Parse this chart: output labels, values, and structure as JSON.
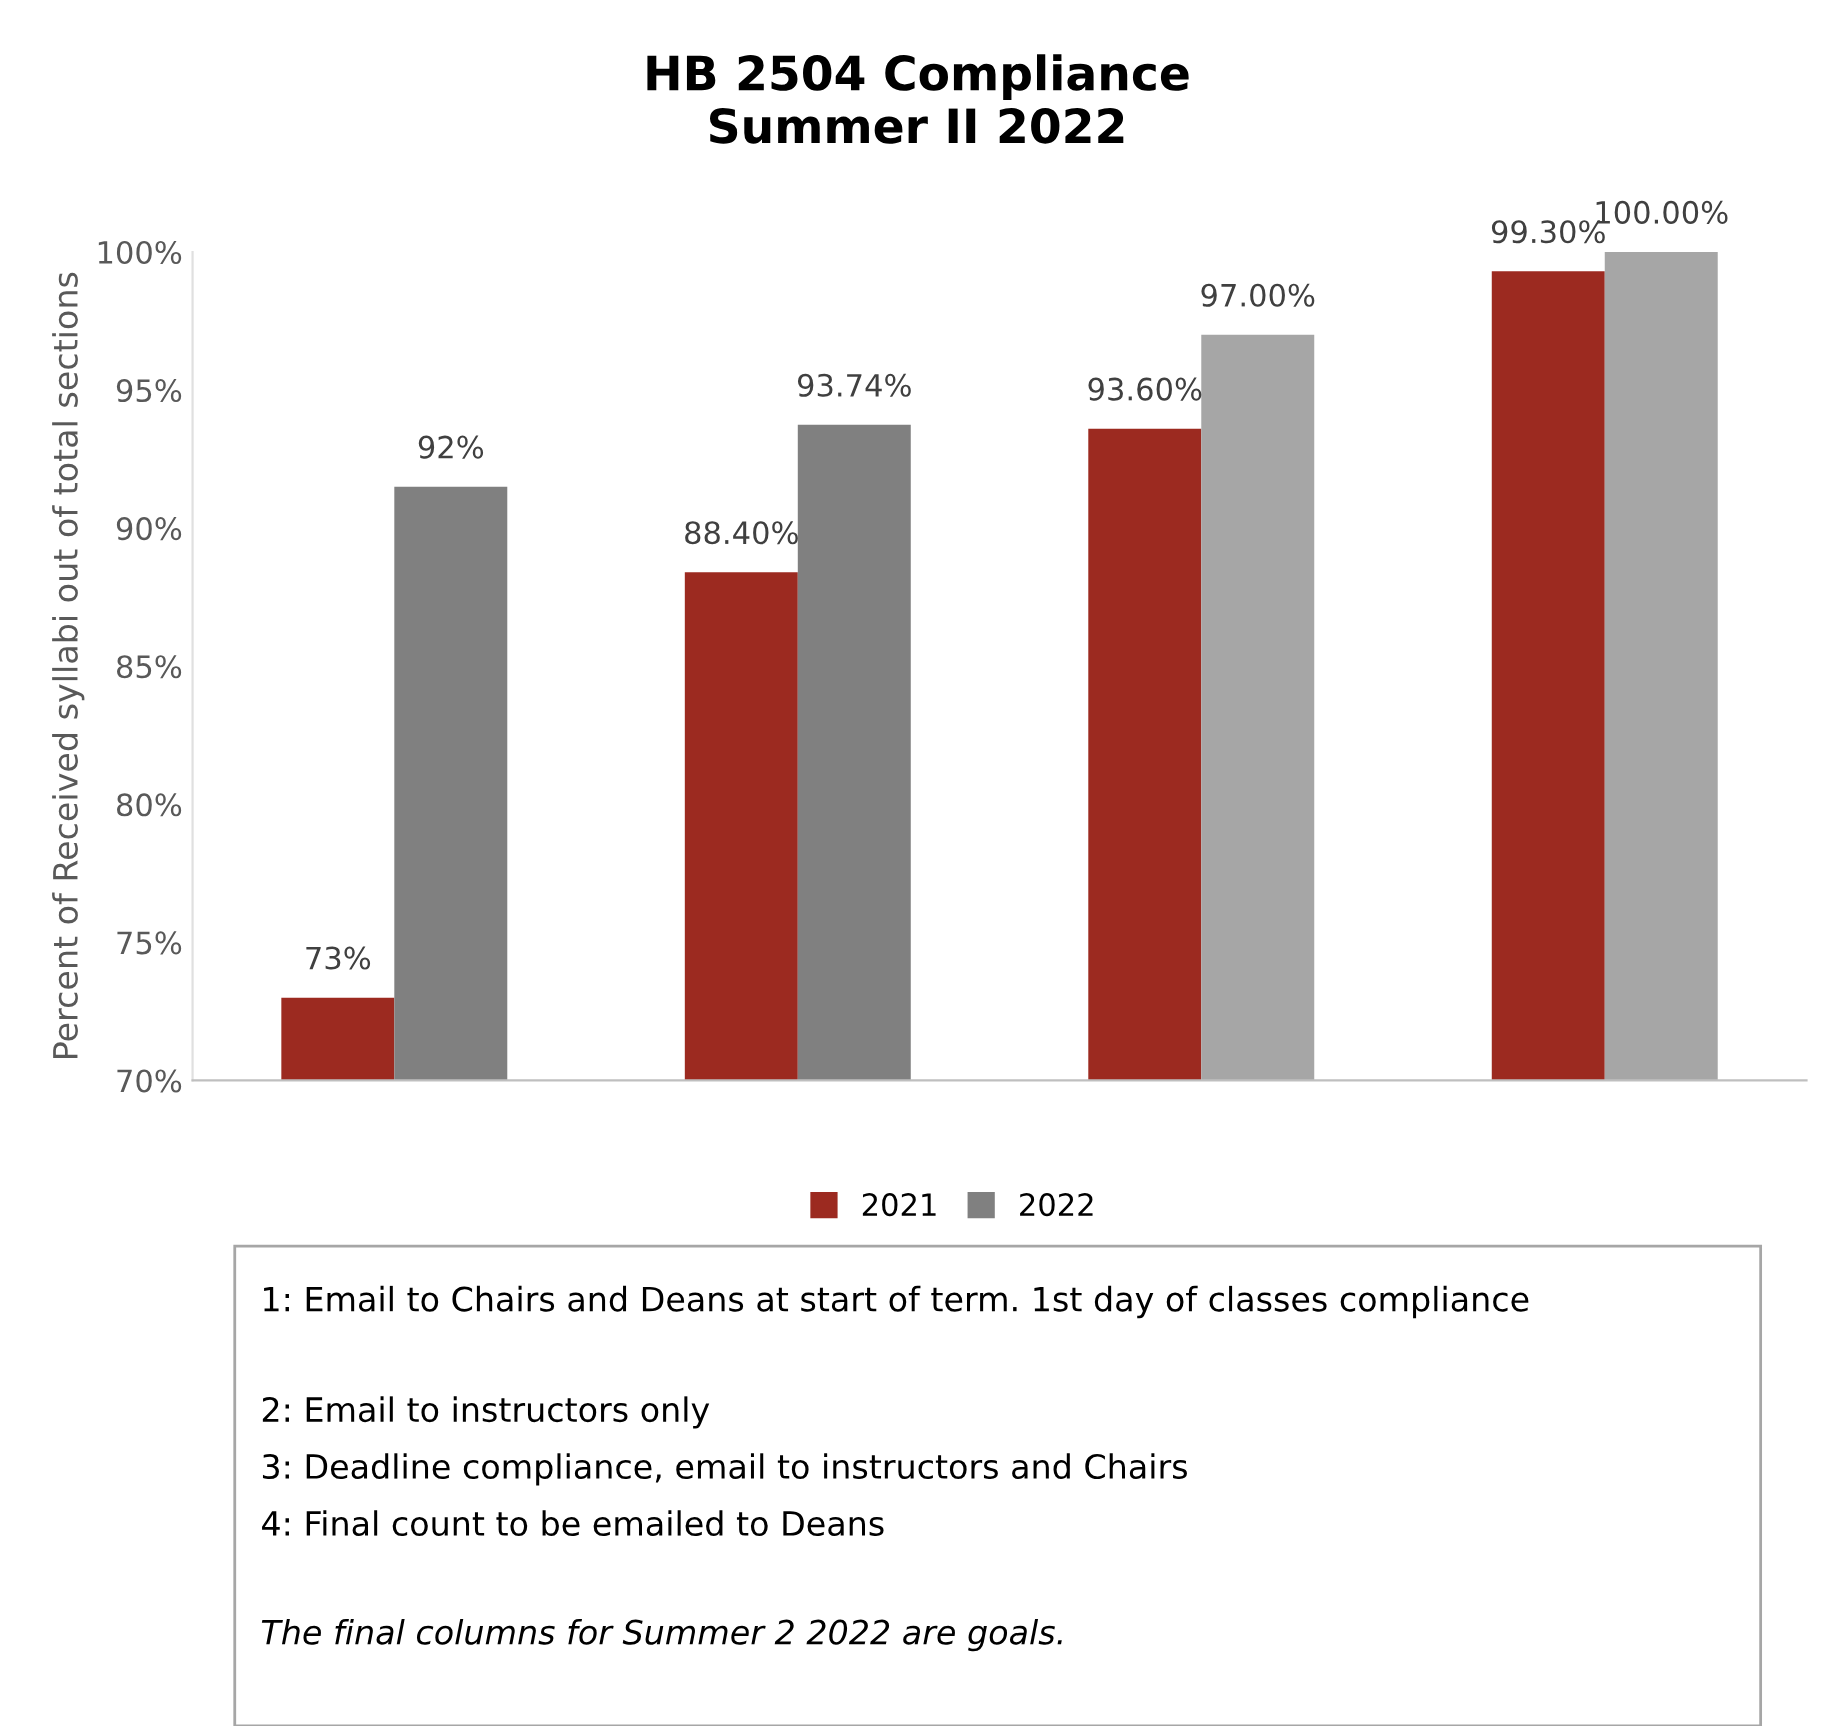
{
  "chart_data": {
    "type": "bar",
    "title": "HB 2504 Compliance\nSummer II 2022",
    "ylabel": "Percent of Received syllabi out of total sections",
    "categories": [
      null,
      null,
      null,
      null
    ],
    "series": [
      {
        "name": "2021",
        "color": "#9c2a20",
        "values": [
          73,
          88.4,
          93.6,
          99.3
        ],
        "value_labels": [
          "73%",
          "88.40%",
          "93.60%",
          "99.30%"
        ]
      },
      {
        "name": "2022",
        "color": "#808080",
        "colors": [
          "#808080",
          "#808080",
          "#a6a6a6",
          "#a6a6a6"
        ],
        "values": [
          91.5,
          93.74,
          97,
          100
        ],
        "value_labels": [
          "92%",
          "93.74%",
          "97.00%",
          "100.00%"
        ]
      }
    ],
    "ylim": [
      70,
      100
    ],
    "yticks": [
      {
        "value": 70,
        "label": "70%"
      },
      {
        "value": 75,
        "label": "75%"
      },
      {
        "value": 80,
        "label": "80%"
      },
      {
        "value": 85,
        "label": "85%"
      },
      {
        "value": 90,
        "label": "90%"
      },
      {
        "value": 95,
        "label": "95%"
      },
      {
        "value": 100,
        "label": "100%"
      }
    ],
    "tick_labels": "y",
    "grid": false,
    "legend": "bottom",
    "annotations": [
      "1: Email to Chairs and Deans at start of term. 1st day of classes compliance",
      "2: Email to instructors only",
      "3: Deadline compliance, email to instructors and Chairs",
      "4: Final count to be emailed to Deans",
      "The final columns for Summer 2 2022 are goals."
    ]
  }
}
